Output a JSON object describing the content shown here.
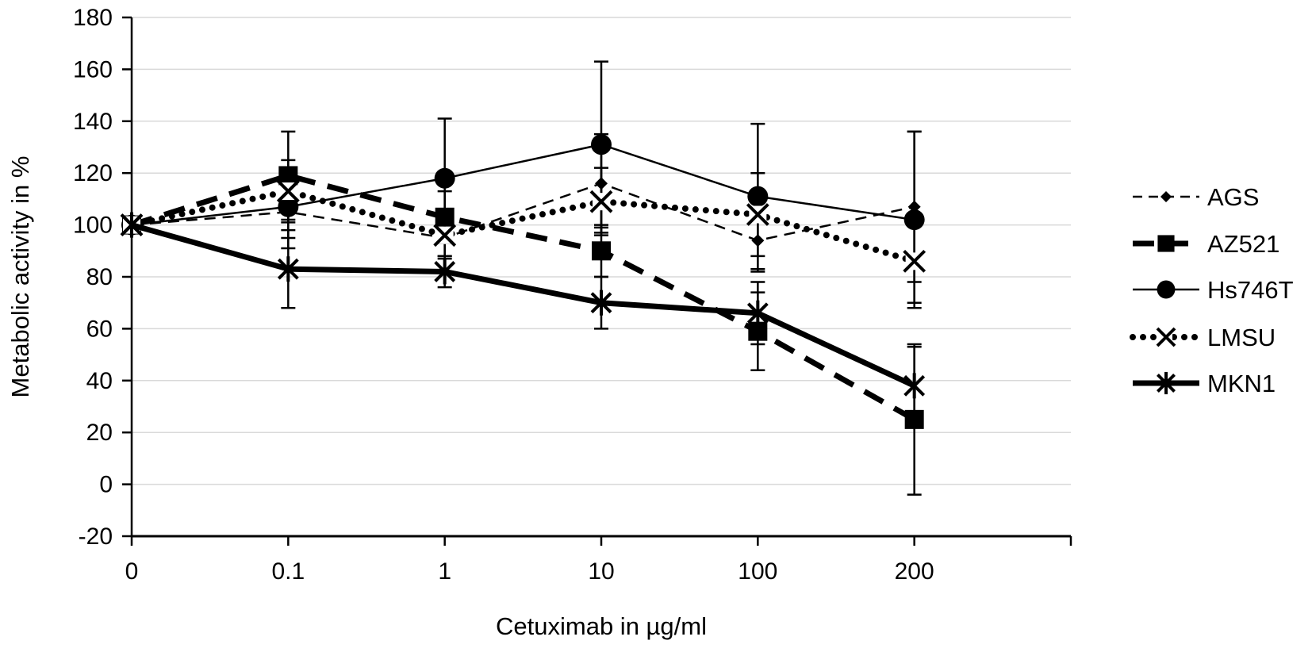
{
  "figure": {
    "background": "#ffffff"
  },
  "chart_data": {
    "type": "line",
    "title": "",
    "categories": [
      "0",
      "0.1",
      "1",
      "10",
      "100",
      "200"
    ],
    "xlabel": "Cetuximab in µg/ml",
    "ylabel": "Metabolic activity in %",
    "ylim": [
      -20,
      180
    ],
    "yticks": [
      180,
      160,
      140,
      120,
      100,
      80,
      60,
      40,
      20,
      0,
      -20
    ],
    "grid": true,
    "legend_position": "right",
    "legend_labels": [
      "AGS",
      "AZ521",
      "Hs746T",
      "LMSU",
      "MKN1"
    ],
    "series": [
      {
        "name": "AGS",
        "marker": "diamond",
        "line": "thin-dashed",
        "values": [
          100,
          105,
          95,
          116,
          94,
          107
        ],
        "errors": [
          0,
          14,
          8,
          19,
          12,
          29
        ]
      },
      {
        "name": "AZ521",
        "marker": "square",
        "line": "thick-dashed",
        "values": [
          100,
          119,
          103,
          90,
          59,
          25
        ],
        "errors": [
          0,
          17,
          10,
          10,
          15,
          29
        ]
      },
      {
        "name": "Hs746T",
        "marker": "circle",
        "line": "thin-solid",
        "values": [
          100,
          107,
          118,
          131,
          111,
          102
        ],
        "errors": [
          0,
          12,
          23,
          32,
          28,
          34
        ]
      },
      {
        "name": "LMSU",
        "marker": "x",
        "line": "dotted",
        "values": [
          100,
          113,
          96,
          109,
          104,
          86
        ],
        "errors": [
          0,
          12,
          8,
          13,
          16,
          16
        ]
      },
      {
        "name": "MKN1",
        "marker": "star",
        "line": "thick-solid",
        "values": [
          100,
          83,
          82,
          70,
          66,
          38
        ],
        "errors": [
          0,
          15,
          6,
          10,
          12,
          15
        ]
      }
    ],
    "colors": {
      "series": "#000000",
      "grid": "#d9d9d9",
      "axis": "#000000",
      "background": "#ffffff"
    }
  }
}
